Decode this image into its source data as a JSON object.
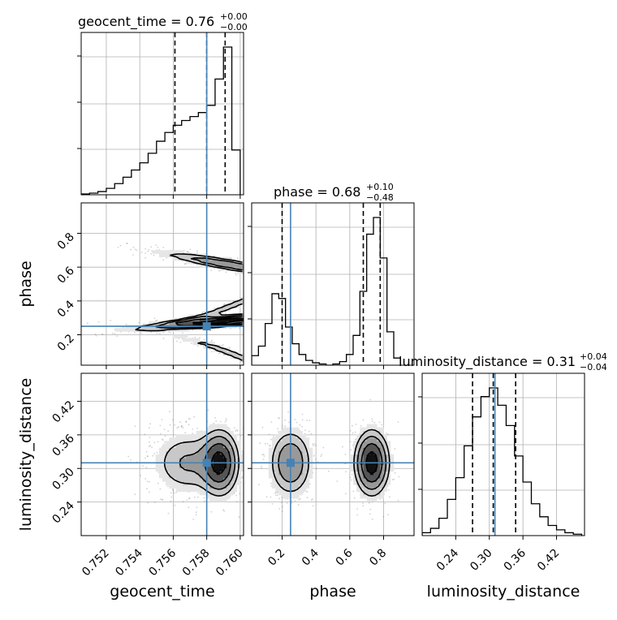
{
  "colors": {
    "truth": "#4682b4",
    "ink": "#000000",
    "grid": "#b0b0b0",
    "scatter": "#7a7a7a"
  },
  "chart_data": {
    "type": "corner",
    "parameters": [
      "geocent_time",
      "phase",
      "luminosity_distance"
    ],
    "truth": {
      "geocent_time": 0.758,
      "phase": 0.25,
      "luminosity_distance": 0.31
    },
    "ranges": {
      "geocent_time": [
        0.7505,
        0.7602
      ],
      "phase": [
        0.02,
        0.98
      ],
      "luminosity_distance": [
        0.18,
        0.47
      ]
    },
    "ticks": {
      "geocent_time": [
        "0.752",
        "0.754",
        "0.756",
        "0.758",
        "0.760"
      ],
      "phase": [
        "0.2",
        "0.4",
        "0.6",
        "0.8"
      ],
      "luminosity_distance": [
        "0.24",
        "0.30",
        "0.36",
        "0.42"
      ]
    },
    "titles": {
      "geocent_time": {
        "label": "geocent_time",
        "median": "0.76",
        "plus": "+0.00",
        "minus": "−0.00"
      },
      "phase": {
        "label": "phase",
        "median": "0.68",
        "plus": "+0.10",
        "minus": "−0.48"
      },
      "luminosity_distance": {
        "label": "luminosity_distance",
        "median": "0.31",
        "plus": "+0.04",
        "minus": "−0.04"
      }
    },
    "quantiles": {
      "geocent_time": [
        0.7561,
        0.758,
        0.7591
      ],
      "phase": [
        0.2,
        0.68,
        0.78
      ],
      "luminosity_distance": [
        0.27,
        0.307,
        0.347
      ]
    },
    "histograms": {
      "geocent_time": {
        "edges": [
          0.7505,
          0.751,
          0.7515,
          0.752,
          0.7525,
          0.753,
          0.7535,
          0.754,
          0.7545,
          0.755,
          0.7555,
          0.756,
          0.7565,
          0.757,
          0.7575,
          0.758,
          0.7585,
          0.759,
          0.7595,
          0.76
        ],
        "counts": [
          1,
          2,
          4,
          8,
          14,
          22,
          31,
          40,
          52,
          67,
          78,
          87,
          93,
          98,
          103,
          112,
          145,
          185,
          56
        ]
      },
      "phase": {
        "edges": [
          0.02,
          0.06,
          0.1,
          0.14,
          0.18,
          0.22,
          0.26,
          0.3,
          0.34,
          0.38,
          0.42,
          0.46,
          0.5,
          0.54,
          0.58,
          0.62,
          0.66,
          0.7,
          0.74,
          0.78,
          0.82,
          0.86,
          0.9
        ],
        "counts": [
          8,
          16,
          35,
          60,
          56,
          32,
          18,
          9,
          4,
          2,
          1,
          0,
          1,
          3,
          9,
          25,
          62,
          110,
          124,
          90,
          28,
          6
        ]
      },
      "luminosity_distance": {
        "edges": [
          0.18,
          0.195,
          0.21,
          0.225,
          0.24,
          0.255,
          0.27,
          0.285,
          0.3,
          0.315,
          0.33,
          0.345,
          0.36,
          0.375,
          0.39,
          0.405,
          0.42,
          0.435,
          0.45,
          0.465
        ],
        "counts": [
          2,
          5,
          12,
          25,
          40,
          62,
          82,
          96,
          102,
          90,
          76,
          55,
          37,
          22,
          13,
          7,
          4,
          2,
          1
        ]
      }
    },
    "density_2d": [
      {
        "x": "geocent_time",
        "y": "phase",
        "components": [
          {
            "slope": 0.6,
            "intercept": 0.23,
            "x0": 0.7525,
            "x1": 0.7602,
            "spread": 0.018,
            "peak_x": 0.759,
            "weight": 1.0
          },
          {
            "slope": -1.3,
            "intercept": 0.73,
            "x0": 0.7525,
            "x1": 0.7602,
            "spread": 0.02,
            "peak_x": 0.7594,
            "weight": 0.55
          },
          {
            "slope": 24.0,
            "intercept": 0.2,
            "x0": 0.7505,
            "x1": 0.7602,
            "spread": 0.014,
            "peak_x": 0.7598,
            "weight": 0.35
          },
          {
            "slope": -26.0,
            "intercept": 0.26,
            "x0": 0.7505,
            "x1": 0.7602,
            "spread": 0.014,
            "peak_x": 0.7598,
            "weight": 0.35
          }
        ]
      },
      {
        "x": "geocent_time",
        "y": "luminosity_distance",
        "components": [
          {
            "mean": [
              0.7588,
              0.31
            ],
            "sd": [
              0.00065,
              0.034
            ],
            "weight": 1.0
          },
          {
            "mean": [
              0.7568,
              0.31
            ],
            "sd": [
              0.0012,
              0.033
            ],
            "weight": 0.45
          }
        ]
      },
      {
        "x": "phase",
        "y": "luminosity_distance",
        "components": [
          {
            "mean": [
              0.25,
              0.31
            ],
            "sd": [
              0.075,
              0.036
            ],
            "weight": 0.6
          },
          {
            "mean": [
              0.73,
              0.31
            ],
            "sd": [
              0.06,
              0.034
            ],
            "weight": 1.0
          }
        ]
      }
    ]
  }
}
